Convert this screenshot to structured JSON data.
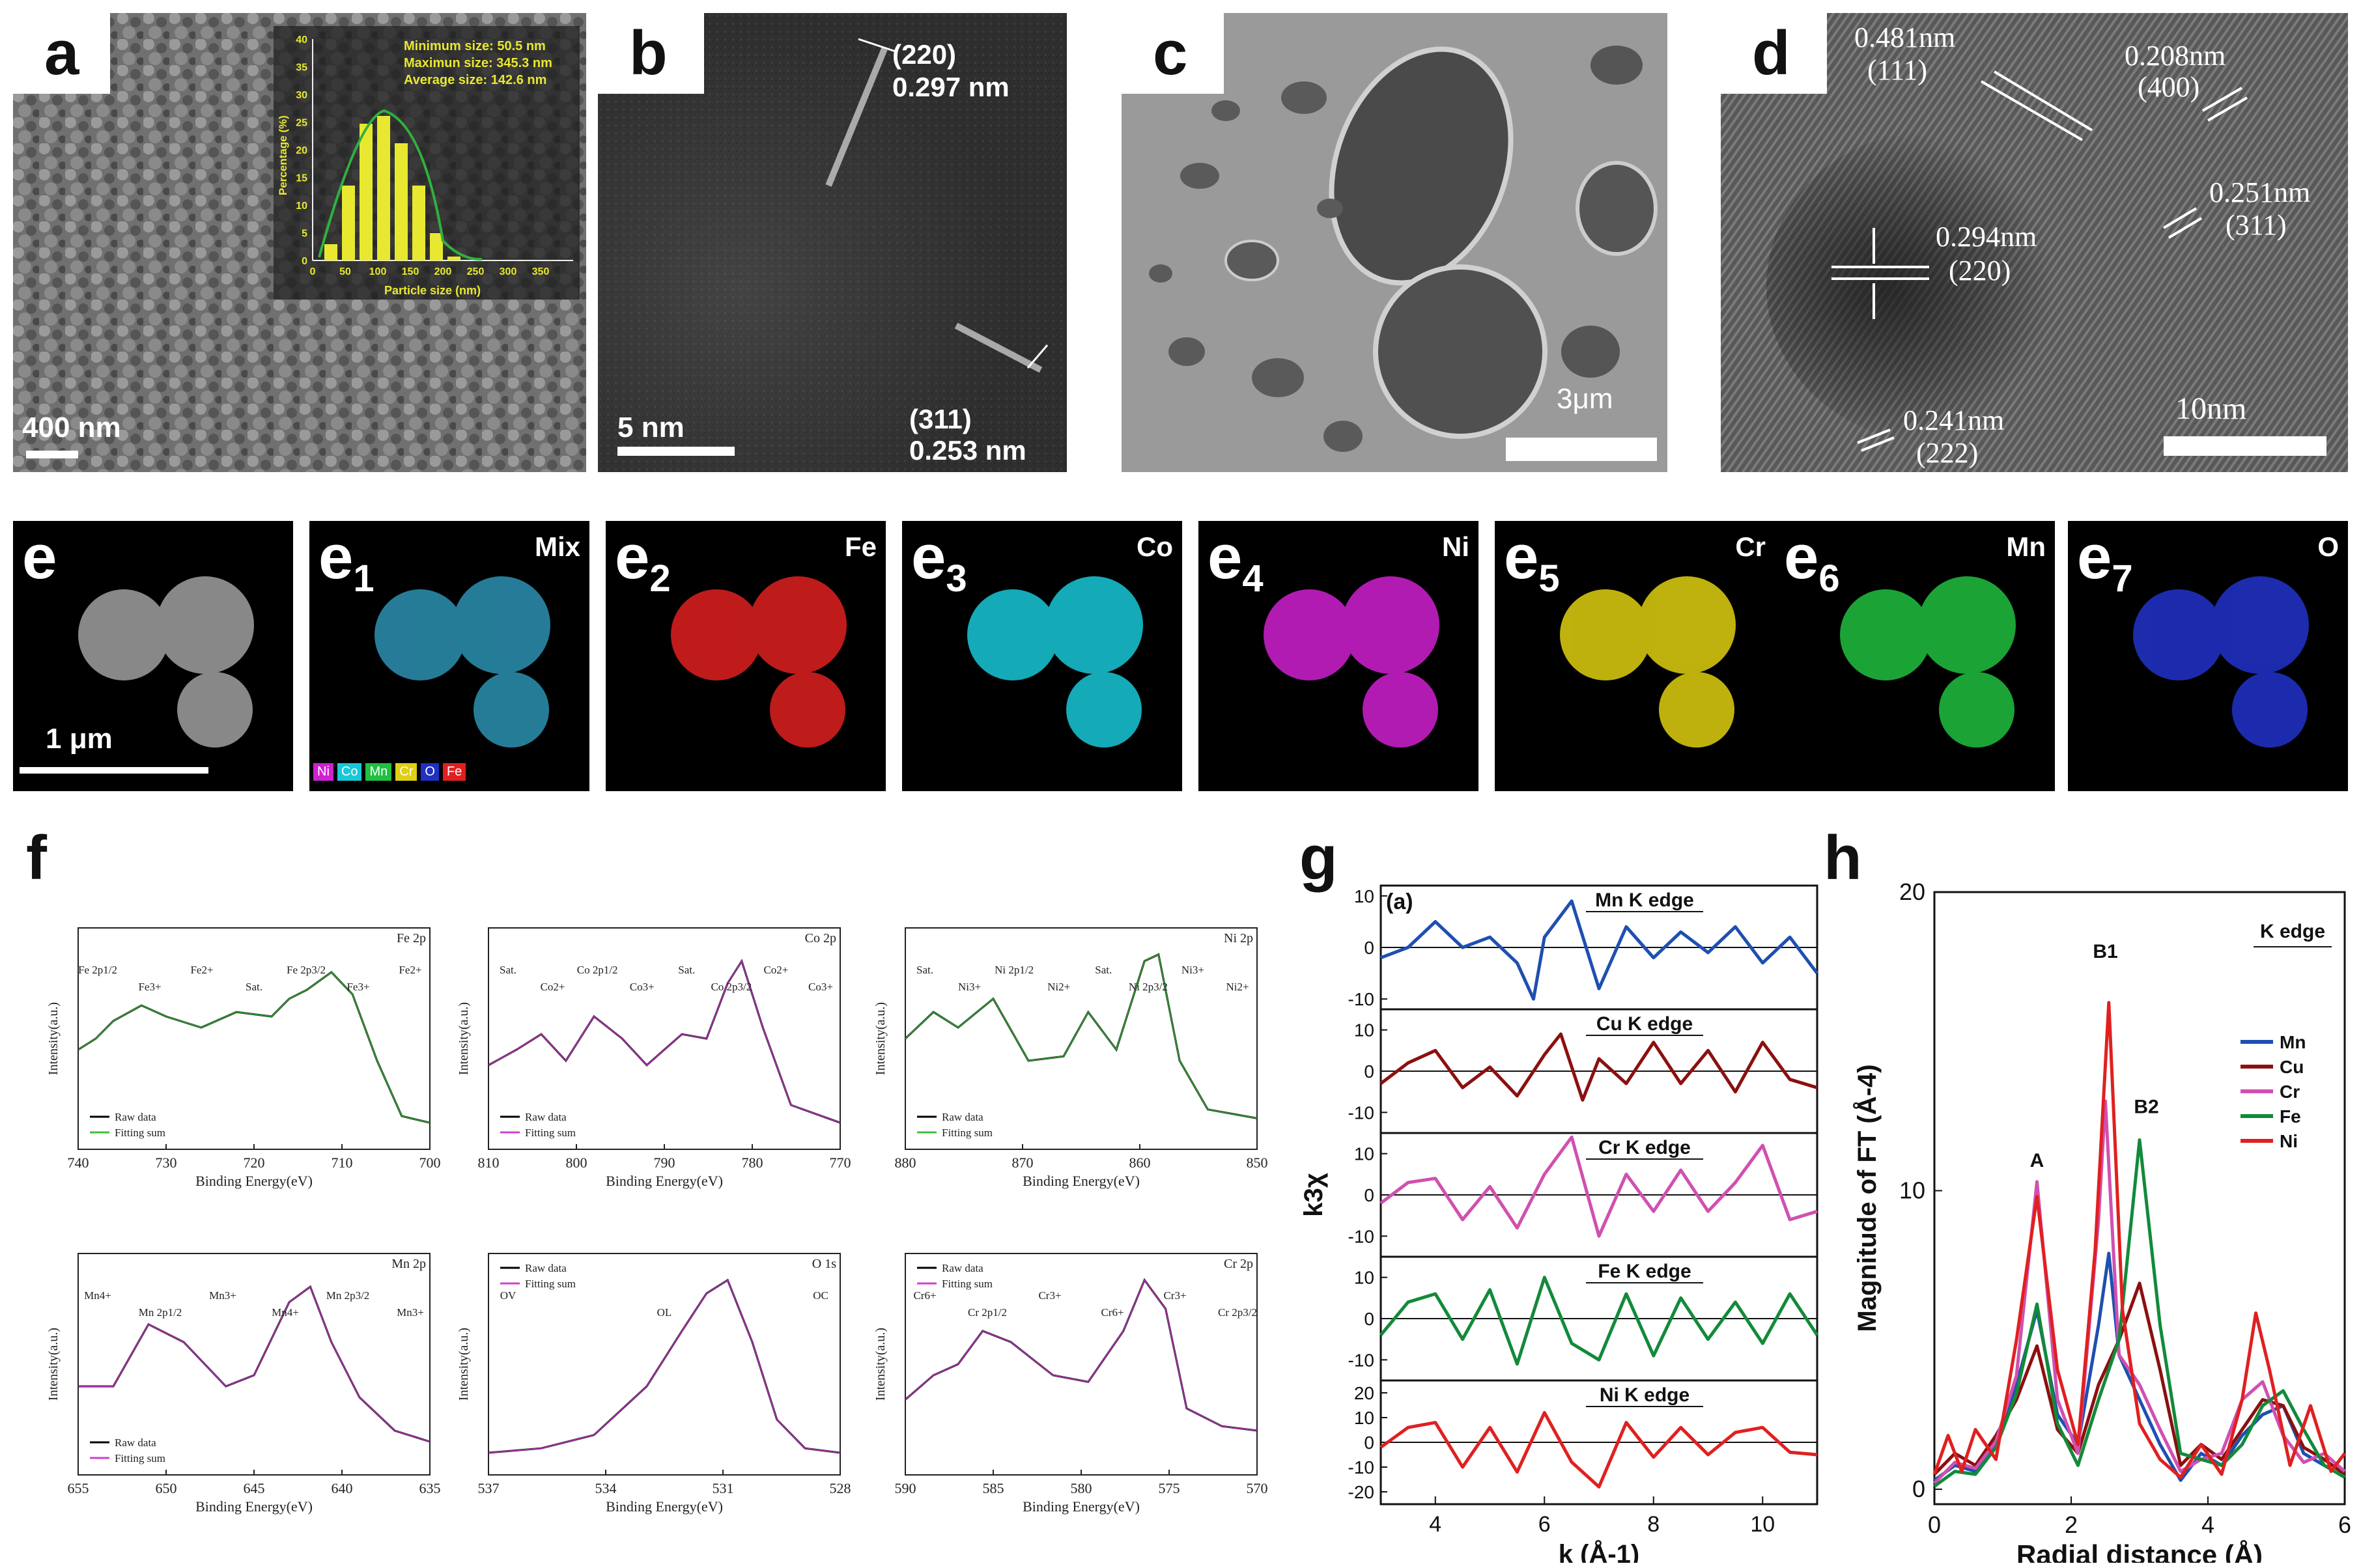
{
  "panels": {
    "a": {
      "label": "a",
      "scale": "400 nm",
      "inset": {
        "lines": [
          "Minimum size: 50.5 nm",
          "Maximun size: 345.3 nm",
          "Average size: 142.6 nm"
        ],
        "ylabel": "Percentage (%)",
        "xlabel": "Particle size (nm)",
        "yticks": [
          "0",
          "5",
          "10",
          "15",
          "20",
          "25",
          "30",
          "35",
          "40"
        ],
        "xticks": [
          "0",
          "50",
          "100",
          "150",
          "200",
          "250",
          "300",
          "350"
        ]
      }
    },
    "b": {
      "label": "b",
      "scale": "5 nm",
      "ann1": [
        "(220)",
        "0.297 nm"
      ],
      "ann2": [
        "(311)",
        "0.253 nm"
      ]
    },
    "c": {
      "label": "c",
      "scale": "3μm"
    },
    "d": {
      "label": "d",
      "scale": "10nm",
      "ann": [
        [
          "0.481nm",
          "(111)"
        ],
        [
          "0.208nm",
          "(400)"
        ],
        [
          "0.251nm",
          "(311)"
        ],
        [
          "0.294nm",
          "(220)"
        ],
        [
          "0.241nm",
          "(222)"
        ]
      ]
    }
  },
  "eds": {
    "e": {
      "label": "e",
      "scale": "1 μm"
    },
    "e1": {
      "label": "e",
      "sub": "1",
      "element": "Mix",
      "legend": [
        "Ni",
        "Co",
        "Mn",
        "Cr",
        "O",
        "Fe"
      ]
    },
    "e2": {
      "label": "e",
      "sub": "2",
      "element": "Fe"
    },
    "e3": {
      "label": "e",
      "sub": "3",
      "element": "Co"
    },
    "e4": {
      "label": "e",
      "sub": "4",
      "element": "Ni"
    },
    "e5": {
      "label": "e",
      "sub": "5",
      "element": "Cr"
    },
    "e6": {
      "label": "e",
      "sub": "6",
      "element": "Mn"
    },
    "e7": {
      "label": "e",
      "sub": "7",
      "element": "O"
    }
  },
  "colors": {
    "Fe": "#e02020",
    "Co": "#18c8d8",
    "Ni": "#d020d0",
    "Cr": "#e0d010",
    "Mn": "#20c040",
    "O": "#2030c0"
  },
  "f": {
    "label": "f",
    "ylabel": "Intensity(a.u.)",
    "xlabel": "Binding Energy(eV)",
    "spectra": [
      {
        "title": "Fe 2p",
        "xticks": [
          "740",
          "730",
          "720",
          "710",
          "700"
        ],
        "legend": [
          "Raw data",
          "Fitting sum"
        ],
        "peaks": [
          "Fe 2p1/2",
          "Fe3+",
          "Fe2+",
          "Sat.",
          "Fe 2p3/2",
          "Fe3+",
          "Fe2+"
        ]
      },
      {
        "title": "Co 2p",
        "xticks": [
          "810",
          "800",
          "790",
          "780",
          "770"
        ],
        "legend": [
          "Raw data",
          "Fitting sum"
        ],
        "peaks": [
          "Sat.",
          "Co2+",
          "Co 2p1/2",
          "Co3+",
          "Sat.",
          "Co 2p3/2",
          "Co2+",
          "Co3+"
        ]
      },
      {
        "title": "Ni 2p",
        "xticks": [
          "880",
          "870",
          "860",
          "850"
        ],
        "legend": [
          "Raw data",
          "Fitting sum"
        ],
        "peaks": [
          "Sat.",
          "Ni3+",
          "Ni 2p1/2",
          "Ni2+",
          "Sat.",
          "Ni 2p3/2",
          "Ni3+",
          "Ni2+"
        ]
      },
      {
        "title": "Mn 2p",
        "xticks": [
          "655",
          "650",
          "645",
          "640",
          "635"
        ],
        "legend": [
          "Raw data",
          "Fitting sum"
        ],
        "peaks": [
          "Mn4+",
          "Mn 2p1/2",
          "Mn3+",
          "Mn4+",
          "Mn 2p3/2",
          "Mn3+"
        ]
      },
      {
        "title": "O 1s",
        "xticks": [
          "537",
          "534",
          "531",
          "528"
        ],
        "legend": [
          "Raw data",
          "Fitting sum"
        ],
        "peaks": [
          "OV",
          "OL",
          "OC"
        ]
      },
      {
        "title": "Cr 2p",
        "xticks": [
          "590",
          "585",
          "580",
          "575",
          "570"
        ],
        "legend": [
          "Raw data",
          "Fitting sum"
        ],
        "peaks": [
          "Cr6+",
          "Cr 2p1/2",
          "Cr3+",
          "Cr6+",
          "Cr3+",
          "Cr 2p3/2"
        ]
      }
    ]
  },
  "chart_data": [
    {
      "type": "line",
      "title": "g",
      "subtitle": "(a)",
      "xlabel": "k (Å-1)",
      "ylabel": "k3χ",
      "xlim": [
        3,
        11
      ],
      "xticks": [
        "4",
        "6",
        "8",
        "10"
      ],
      "series": [
        {
          "name": "Mn K edge",
          "color": "#1f4fb0",
          "ylim": [
            -12,
            12
          ],
          "yticks": [
            "10",
            "0",
            "-10"
          ],
          "x": [
            3,
            3.5,
            4,
            4.5,
            5,
            5.5,
            5.8,
            6,
            6.5,
            7,
            7.5,
            8,
            8.5,
            9,
            9.5,
            10,
            10.5,
            11
          ],
          "y": [
            -2,
            0,
            5,
            0,
            2,
            -3,
            -10,
            2,
            9,
            -8,
            4,
            -2,
            3,
            -1,
            4,
            -3,
            2,
            -5
          ]
        },
        {
          "name": "Cu K edge",
          "color": "#8b1010",
          "ylim": [
            -15,
            15
          ],
          "yticks": [
            "10",
            "0",
            "-10"
          ],
          "x": [
            3,
            3.5,
            4,
            4.5,
            5,
            5.5,
            6,
            6.3,
            6.7,
            7,
            7.5,
            8,
            8.5,
            9,
            9.5,
            10,
            10.5,
            11
          ],
          "y": [
            -3,
            2,
            5,
            -4,
            1,
            -6,
            4,
            9,
            -7,
            3,
            -3,
            7,
            -3,
            5,
            -5,
            7,
            -2,
            -4
          ]
        },
        {
          "name": "Cr K edge",
          "color": "#d050b0",
          "ylim": [
            -15,
            15
          ],
          "yticks": [
            "10",
            "0",
            "-10"
          ],
          "x": [
            3,
            3.5,
            4,
            4.5,
            5,
            5.5,
            6,
            6.5,
            7,
            7.5,
            8,
            8.5,
            9,
            9.5,
            10,
            10.5,
            11
          ],
          "y": [
            -2,
            3,
            4,
            -6,
            2,
            -8,
            5,
            14,
            -10,
            5,
            -4,
            6,
            -4,
            3,
            12,
            -6,
            -4
          ]
        },
        {
          "name": "Fe K edge",
          "color": "#128a3a",
          "ylim": [
            -15,
            15
          ],
          "yticks": [
            "10",
            "0",
            "-10"
          ],
          "x": [
            3,
            3.5,
            4,
            4.5,
            5,
            5.5,
            6,
            6.5,
            7,
            7.5,
            8,
            8.5,
            9,
            9.5,
            10,
            10.5,
            11
          ],
          "y": [
            -4,
            4,
            6,
            -5,
            7,
            -11,
            10,
            -6,
            -10,
            6,
            -9,
            5,
            -5,
            4,
            -6,
            6,
            -4
          ]
        },
        {
          "name": "Ni K edge",
          "color": "#e02020",
          "ylim": [
            -25,
            25
          ],
          "yticks": [
            "20",
            "10",
            "0",
            "-10",
            "-20"
          ],
          "x": [
            3,
            3.5,
            4,
            4.5,
            5,
            5.5,
            6,
            6.5,
            7,
            7.5,
            8,
            8.5,
            9,
            9.5,
            10,
            10.5,
            11
          ],
          "y": [
            -2,
            6,
            8,
            -10,
            6,
            -12,
            12,
            -8,
            -18,
            8,
            -6,
            6,
            -5,
            4,
            6,
            -4,
            -5
          ]
        }
      ]
    },
    {
      "type": "line",
      "title": "h",
      "xlabel": "Radial distance (Å)",
      "ylabel": "Magnitude of FT (Å-4)",
      "xlim": [
        0,
        6
      ],
      "ylim": [
        -0.5,
        20
      ],
      "xticks": [
        "0",
        "2",
        "4",
        "6"
      ],
      "yticks": [
        "0",
        "10",
        "20"
      ],
      "legend_title": "K edge",
      "annotations": [
        {
          "text": "A",
          "x": 1.5,
          "y": 10.8
        },
        {
          "text": "B1",
          "x": 2.5,
          "y": 17.8
        },
        {
          "text": "B2",
          "x": 3.1,
          "y": 12.6
        }
      ],
      "series": [
        {
          "name": "Mn",
          "color": "#1f4fb0",
          "x": [
            0,
            0.3,
            0.6,
            0.9,
            1.2,
            1.5,
            1.8,
            2.1,
            2.4,
            2.55,
            2.7,
            3.0,
            3.3,
            3.6,
            3.9,
            4.2,
            4.5,
            4.8,
            5.1,
            5.4,
            5.7,
            6
          ],
          "y": [
            0.3,
            0.8,
            0.6,
            1.5,
            3.5,
            6.0,
            2.5,
            1.5,
            5.5,
            7.9,
            4.5,
            3.0,
            1.5,
            0.3,
            1.2,
            0.8,
            1.8,
            2.5,
            2.8,
            1.2,
            0.8,
            0.4
          ]
        },
        {
          "name": "Cu",
          "color": "#8b1010",
          "x": [
            0,
            0.3,
            0.6,
            0.9,
            1.2,
            1.5,
            1.8,
            2.1,
            2.4,
            2.7,
            3.0,
            3.3,
            3.6,
            3.9,
            4.2,
            4.5,
            4.8,
            5.1,
            5.4,
            5.7,
            6
          ],
          "y": [
            0.5,
            1.2,
            0.8,
            1.8,
            3.0,
            4.8,
            2.0,
            1.2,
            3.5,
            5.0,
            6.9,
            4.0,
            0.8,
            1.5,
            1.0,
            2.0,
            3.0,
            2.8,
            1.4,
            1.0,
            0.5
          ]
        },
        {
          "name": "Cr",
          "color": "#d050b0",
          "x": [
            0,
            0.3,
            0.6,
            0.9,
            1.2,
            1.5,
            1.8,
            2.1,
            2.4,
            2.5,
            2.7,
            3.0,
            3.3,
            3.6,
            3.9,
            4.2,
            4.5,
            4.8,
            5.1,
            5.4,
            5.7,
            6
          ],
          "y": [
            0.2,
            0.9,
            0.7,
            1.6,
            3.8,
            10.3,
            3.0,
            1.2,
            9.0,
            13.0,
            4.5,
            3.5,
            2.0,
            0.6,
            1.0,
            1.2,
            3.0,
            3.6,
            1.8,
            0.9,
            1.2,
            0.6
          ]
        },
        {
          "name": "Fe",
          "color": "#128a3a",
          "x": [
            0,
            0.3,
            0.6,
            0.9,
            1.2,
            1.5,
            1.8,
            2.1,
            2.4,
            2.7,
            3.0,
            3.3,
            3.6,
            3.9,
            4.2,
            4.5,
            4.8,
            5.1,
            5.4,
            5.7,
            6
          ],
          "y": [
            0.1,
            0.6,
            0.5,
            1.4,
            3.2,
            6.2,
            2.2,
            0.8,
            3.0,
            5.0,
            11.7,
            5.5,
            1.2,
            1.0,
            0.8,
            1.5,
            2.8,
            3.3,
            2.0,
            0.8,
            0.4
          ]
        },
        {
          "name": "Ni",
          "color": "#e02020",
          "x": [
            0,
            0.2,
            0.4,
            0.6,
            0.9,
            1.2,
            1.5,
            1.8,
            2.1,
            2.35,
            2.55,
            2.75,
            3.0,
            3.3,
            3.6,
            3.9,
            4.2,
            4.5,
            4.7,
            4.9,
            5.2,
            5.5,
            5.8,
            6
          ],
          "y": [
            0.5,
            1.8,
            0.6,
            2.0,
            1.0,
            5.0,
            9.8,
            4.0,
            1.5,
            8.0,
            16.3,
            6.0,
            2.2,
            1.0,
            0.4,
            1.5,
            0.5,
            3.0,
            5.9,
            4.0,
            0.8,
            2.8,
            0.6,
            1.2
          ]
        }
      ]
    }
  ]
}
